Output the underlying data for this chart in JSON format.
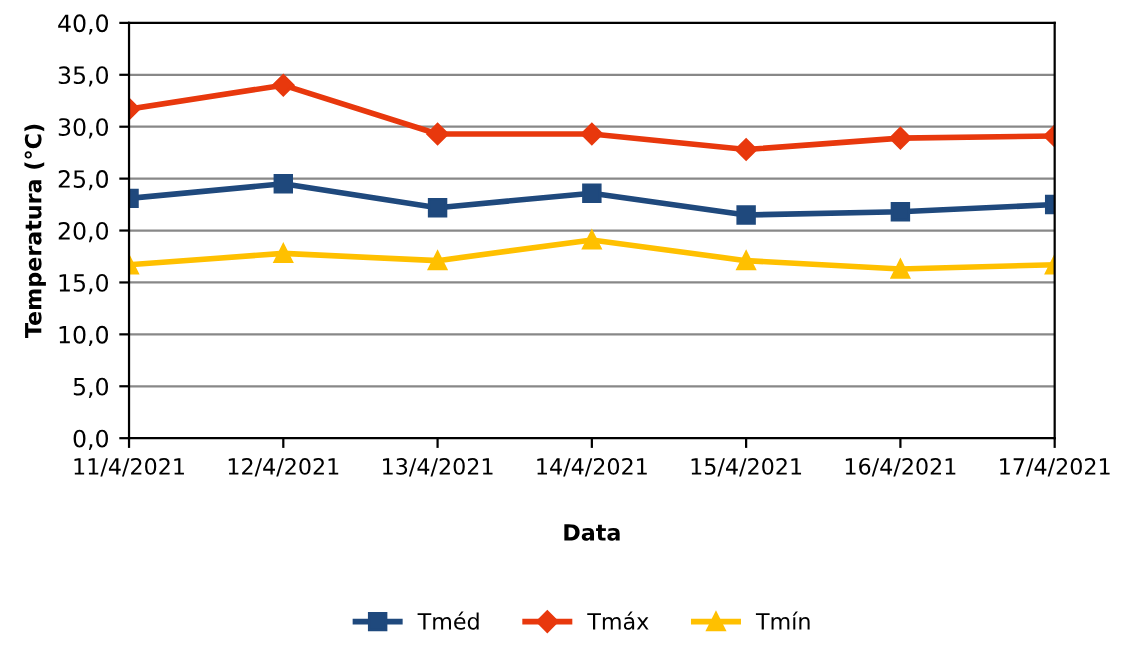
{
  "chart_data": {
    "type": "line",
    "xlabel": "Data",
    "ylabel": "Temperatura (°C)",
    "categories": [
      "11/4/2021",
      "12/4/2021",
      "13/4/2021",
      "14/4/2021",
      "15/4/2021",
      "16/4/2021",
      "17/4/2021"
    ],
    "series": [
      {
        "name": "Tméd",
        "color": "#1f497d",
        "marker": "square",
        "values": [
          23.1,
          24.5,
          22.2,
          23.6,
          21.5,
          21.8,
          22.5
        ]
      },
      {
        "name": "Tmáx",
        "color": "#e8380d",
        "marker": "diamond",
        "values": [
          31.7,
          34.0,
          29.3,
          29.3,
          27.8,
          28.9,
          29.1
        ]
      },
      {
        "name": "Tmín",
        "color": "#ffc000",
        "marker": "triangle",
        "values": [
          16.7,
          17.8,
          17.1,
          19.1,
          17.1,
          16.3,
          16.7
        ]
      }
    ],
    "ylim": [
      0,
      40
    ],
    "yticks": [
      {
        "value": 0,
        "label": "0,0"
      },
      {
        "value": 5,
        "label": "5,0"
      },
      {
        "value": 10,
        "label": "10,0"
      },
      {
        "value": 15,
        "label": "15,0"
      },
      {
        "value": 20,
        "label": "20,0"
      },
      {
        "value": 25,
        "label": "25,0"
      },
      {
        "value": 30,
        "label": "30,0"
      },
      {
        "value": 35,
        "label": "35,0"
      },
      {
        "value": 40,
        "label": "40,0"
      }
    ],
    "grid": "y",
    "legend": "bottom",
    "line_style": "solid"
  }
}
